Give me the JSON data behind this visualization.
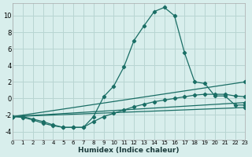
{
  "xlabel": "Humidex (Indice chaleur)",
  "bg_color": "#d8eeec",
  "grid_color": "#b8d5d2",
  "line_color": "#1a6e65",
  "xlim": [
    0,
    23
  ],
  "ylim": [
    -5,
    11.5
  ],
  "xtick_vals": [
    0,
    1,
    2,
    3,
    4,
    5,
    6,
    7,
    8,
    9,
    10,
    11,
    12,
    13,
    14,
    15,
    16,
    17,
    18,
    19,
    20,
    21,
    22,
    23
  ],
  "ytick_vals": [
    -4,
    -2,
    0,
    2,
    4,
    6,
    8,
    10
  ],
  "curve_x": [
    0,
    1,
    2,
    3,
    4,
    5,
    6,
    7,
    8,
    9,
    10,
    11,
    12,
    13,
    14,
    15,
    16,
    17,
    18,
    19,
    20,
    21,
    22,
    23
  ],
  "curve_y": [
    -2.2,
    -2.2,
    -2.5,
    -2.8,
    -3.2,
    -3.5,
    -3.5,
    -3.5,
    -2.2,
    0.2,
    1.5,
    3.8,
    7.0,
    8.8,
    10.5,
    11.0,
    10.0,
    5.5,
    2.0,
    1.8,
    0.3,
    0.3,
    -0.8,
    -0.8
  ],
  "line2_x": [
    0,
    1,
    2,
    3,
    4,
    5,
    6,
    7,
    8,
    9,
    10,
    11,
    12,
    13,
    14,
    15,
    16,
    17,
    18,
    19,
    20,
    21,
    22,
    23
  ],
  "line2_y": [
    -2.2,
    -2.3,
    -2.6,
    -3.0,
    -3.3,
    -3.5,
    -3.5,
    -3.5,
    -2.8,
    -2.2,
    -1.8,
    -1.4,
    -1.0,
    -0.7,
    -0.4,
    -0.2,
    0.0,
    0.2,
    0.4,
    0.5,
    0.5,
    0.5,
    0.3,
    0.2
  ],
  "line3_x": [
    0,
    23
  ],
  "line3_y": [
    -2.2,
    2.0
  ],
  "line4_x": [
    0,
    23
  ],
  "line4_y": [
    -2.2,
    -0.5
  ],
  "line5_x": [
    0,
    23
  ],
  "line5_y": [
    -2.2,
    -1.1
  ]
}
